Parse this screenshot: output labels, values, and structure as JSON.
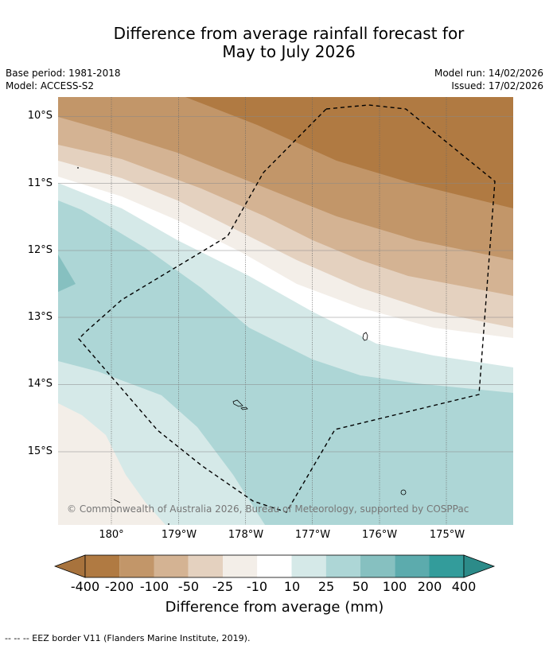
{
  "title_line1": "Difference from average rainfall forecast for",
  "title_line2": "May to July 2026",
  "meta_left": {
    "base_period": "Base period: 1981-2018",
    "model": "Model: ACCESS-S2"
  },
  "meta_right": {
    "model_run": "Model run: 14/02/2026",
    "issued": "Issued: 17/02/2026"
  },
  "lat_labels": [
    "10°S",
    "11°S",
    "12°S",
    "13°S",
    "14°S",
    "15°S"
  ],
  "lon_labels": [
    "180°",
    "179°W",
    "178°W",
    "177°W",
    "176°W",
    "175°W"
  ],
  "credit": "© Commonwealth of Australia 2026, Bureau of Meteorology, supported by COSPPac",
  "colorbar": {
    "labels": [
      "-400",
      "-200",
      "-100",
      "-50",
      "-25",
      "-10",
      "10",
      "25",
      "50",
      "100",
      "200",
      "400"
    ],
    "colors": [
      "#a8733d",
      "#b07a42",
      "#c29669",
      "#d4b393",
      "#e4d1bf",
      "#f3eee8",
      "#ffffff",
      "#d5e9e8",
      "#add6d6",
      "#86c0c0",
      "#5cabad",
      "#339c9b",
      "#2c8b89"
    ],
    "title": "Difference from average (mm)"
  },
  "footer": "--  --  -- EEZ border V11 (Flanders Marine Institute, 2019)."
}
